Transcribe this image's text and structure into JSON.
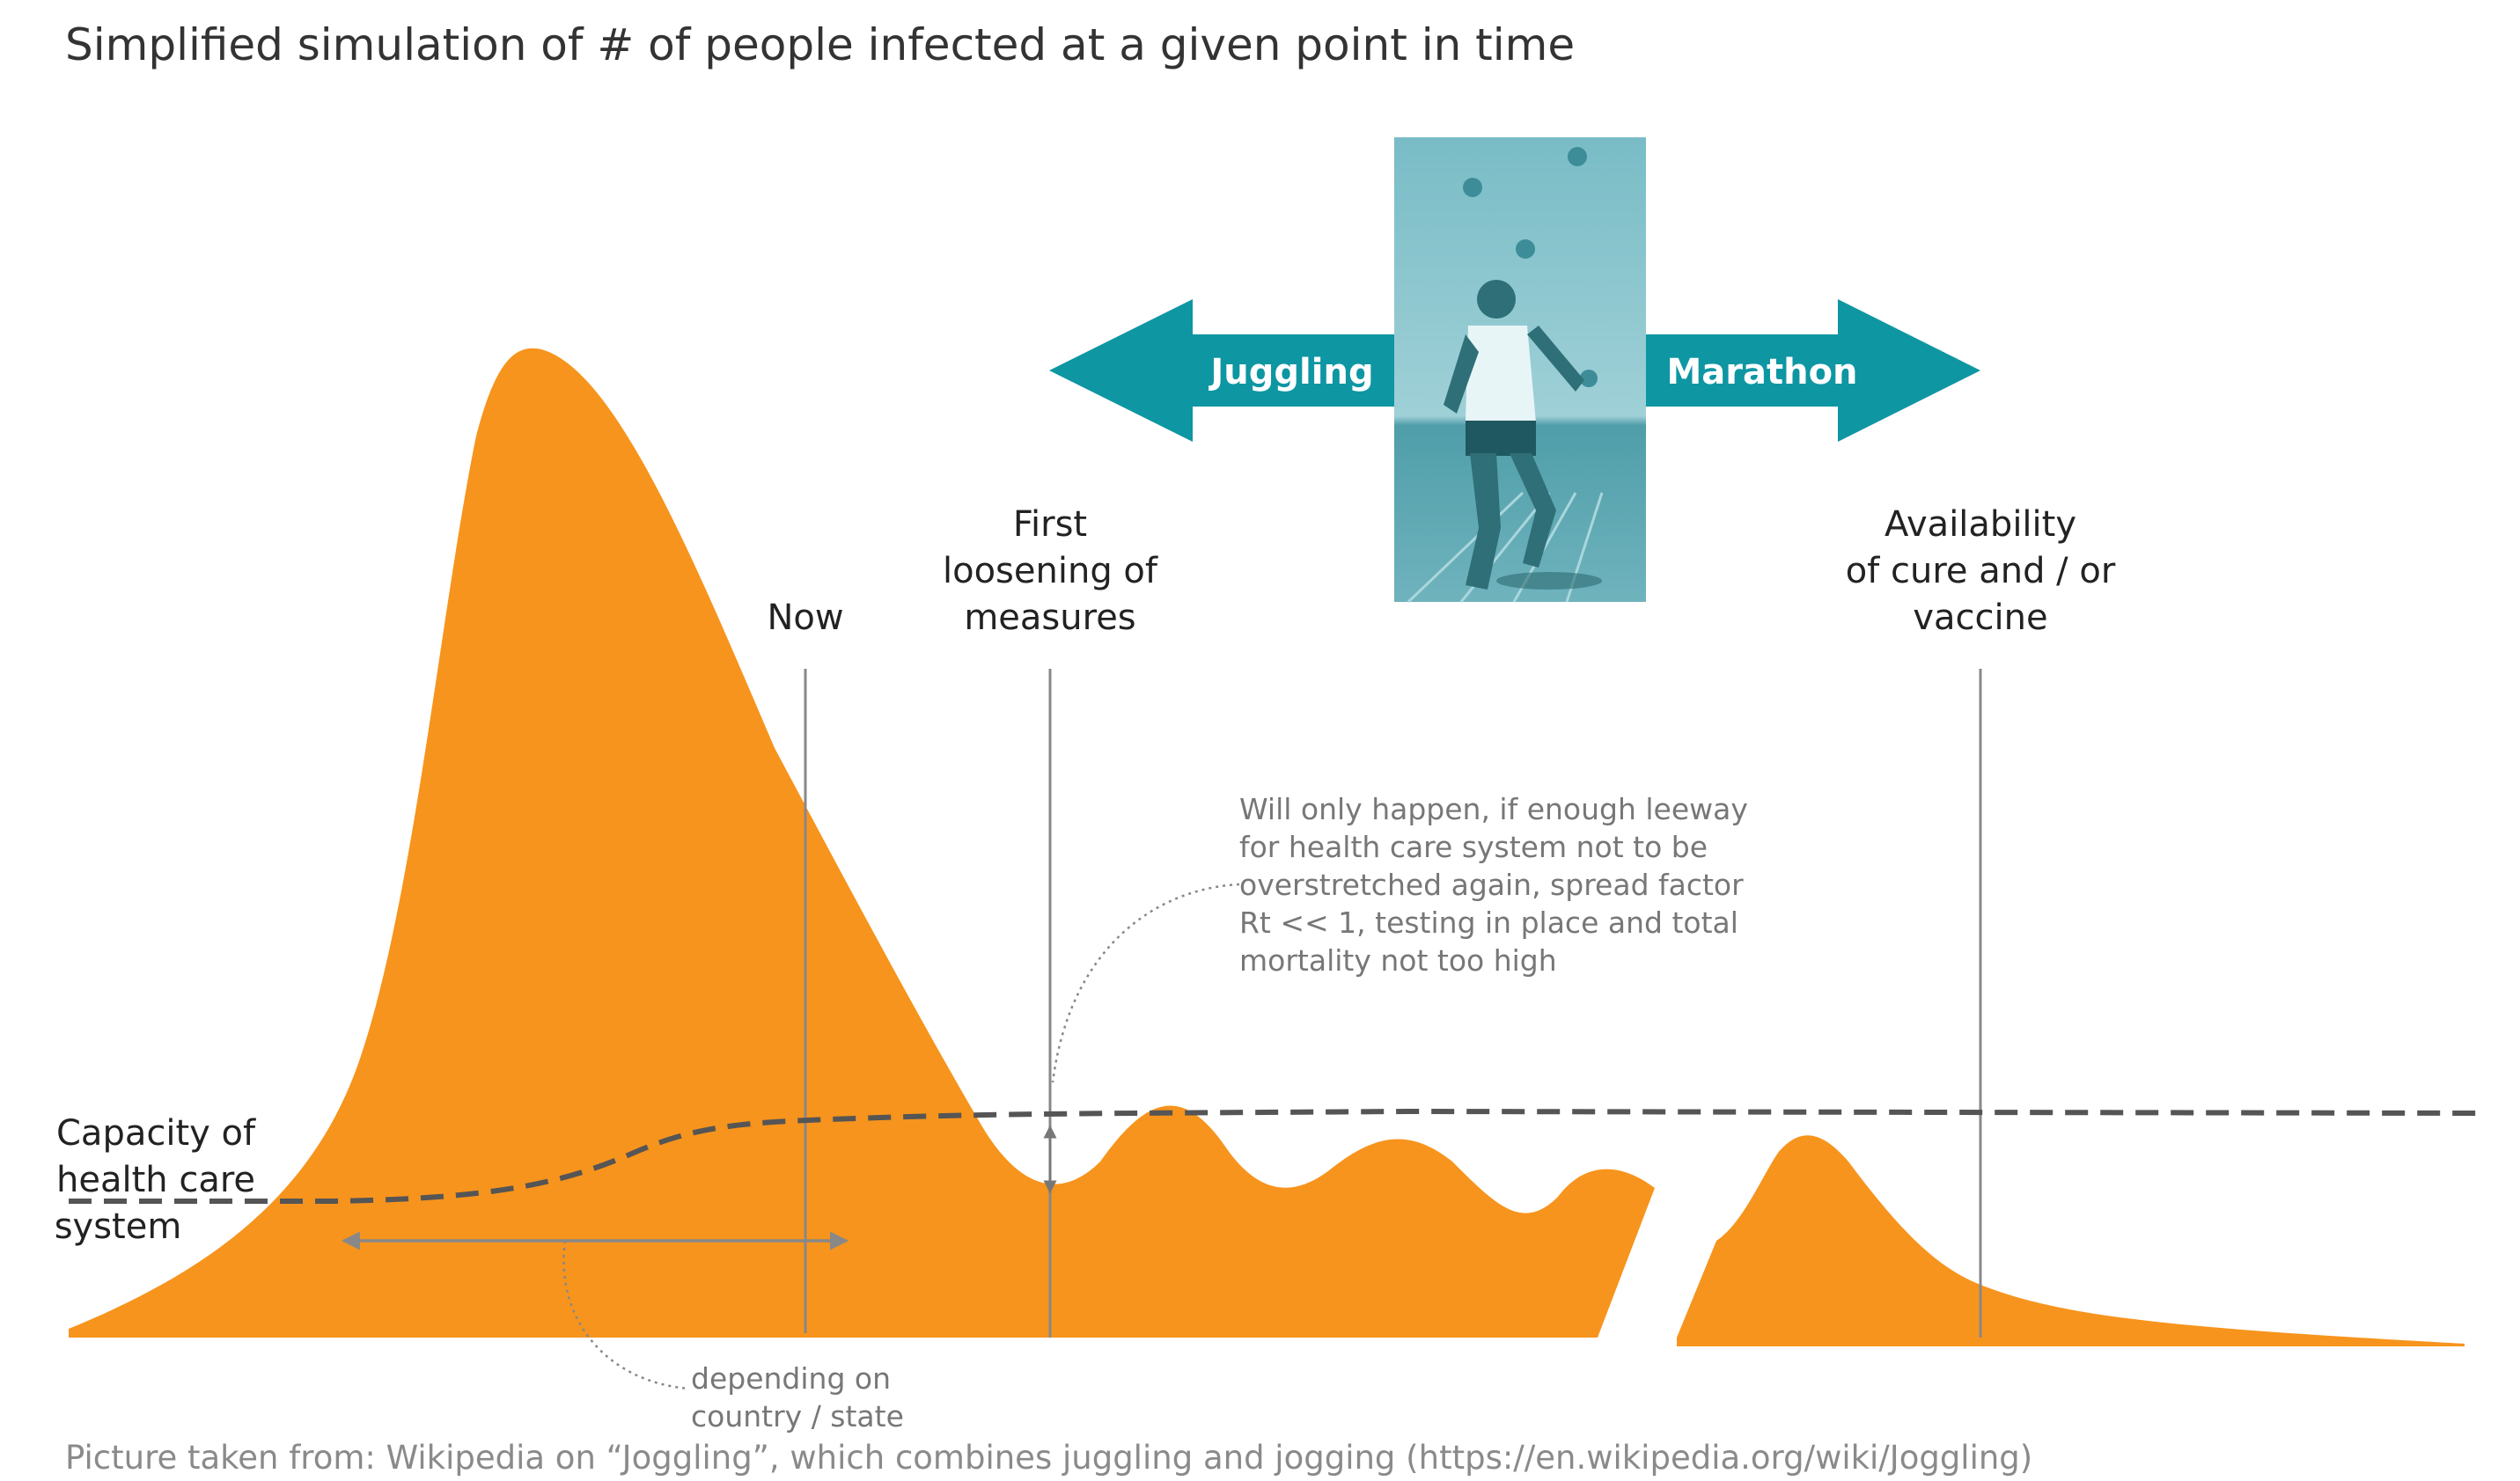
{
  "title": "Simplified simulation of # of people infected at a given point in time",
  "markers": {
    "now": "Now",
    "first_loosening": [
      "First",
      "loosening of",
      "measures"
    ],
    "availability": [
      "Availability",
      "of cure and / or",
      "vaccine"
    ]
  },
  "capacity_label": [
    "Capacity of",
    "health care",
    "system"
  ],
  "arrows": {
    "left": "Juggling",
    "right": "Marathon"
  },
  "notes": {
    "loosening_condition": [
      "Will only happen, if enough leeway",
      "for health care system not to be",
      "overstretched again, spread factor",
      "Rt << 1, testing in place and total",
      "mortality not too high"
    ],
    "depending": [
      "depending on",
      "country / state"
    ]
  },
  "footer": "Picture taken from: Wikipedia on “Joggling”, which combines juggling and jogging (https://en.wikipedia.org/wiki/Joggling)",
  "photo": {
    "subject": "joggler-photo",
    "tint": "#5aa8b3"
  },
  "colors": {
    "infection_area": "#F7941D",
    "arrow": "#0E96A3",
    "capacity_line": "#555555",
    "marker_line": "#888888",
    "annotation": "#888888"
  }
}
